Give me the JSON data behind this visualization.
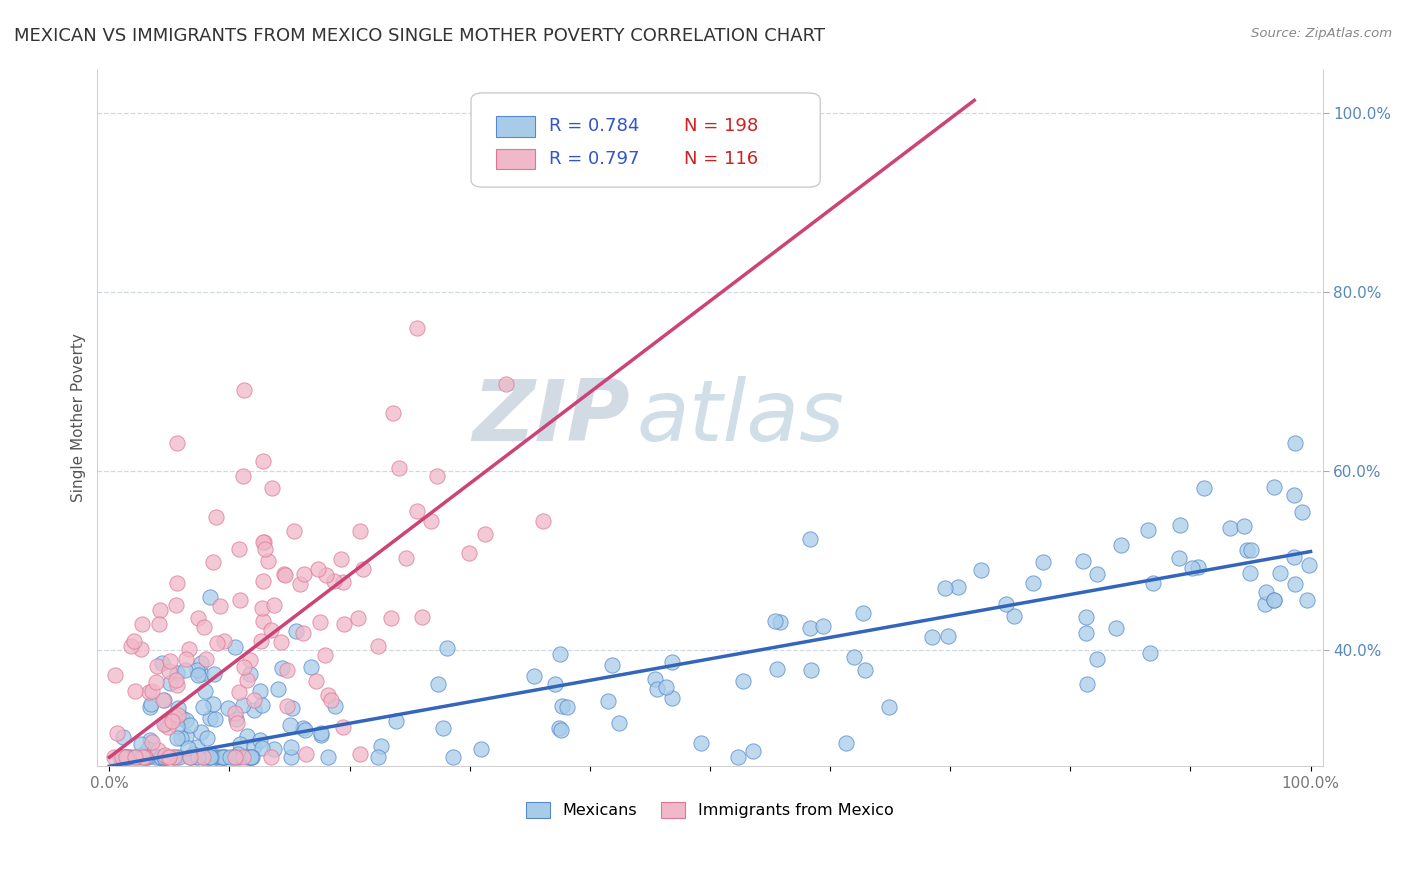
{
  "title": "MEXICAN VS IMMIGRANTS FROM MEXICO SINGLE MOTHER POVERTY CORRELATION CHART",
  "source": "Source: ZipAtlas.com",
  "ylabel": "Single Mother Poverty",
  "xlim": [
    -0.01,
    1.01
  ],
  "ylim": [
    0.27,
    1.05
  ],
  "group1_name": "Mexicans",
  "group1_color": "#a8cce8",
  "group1_edge_color": "#5588cc",
  "group1_line_color": "#3366bb",
  "group1_R": "0.784",
  "group1_N": "198",
  "group1_intercept": 0.27,
  "group1_slope": 0.24,
  "group2_name": "Immigrants from Mexico",
  "group2_color": "#f0b8c8",
  "group2_edge_color": "#dd7799",
  "group2_line_color": "#cc4477",
  "group2_R": "0.797",
  "group2_N": "116",
  "group2_intercept": 0.28,
  "group2_slope": 1.02,
  "legend_R_color": "#3355cc",
  "legend_N_color": "#cc2222",
  "watermark_zip": "ZIP",
  "watermark_atlas": "atlas",
  "watermark_color_zip": "#c0ccd8",
  "watermark_color_atlas": "#b0c8d8",
  "background_color": "#ffffff",
  "grid_color": "#d0d8e0",
  "title_fontsize": 13,
  "axis_fontsize": 11,
  "tick_fontsize": 11,
  "seed": 42
}
